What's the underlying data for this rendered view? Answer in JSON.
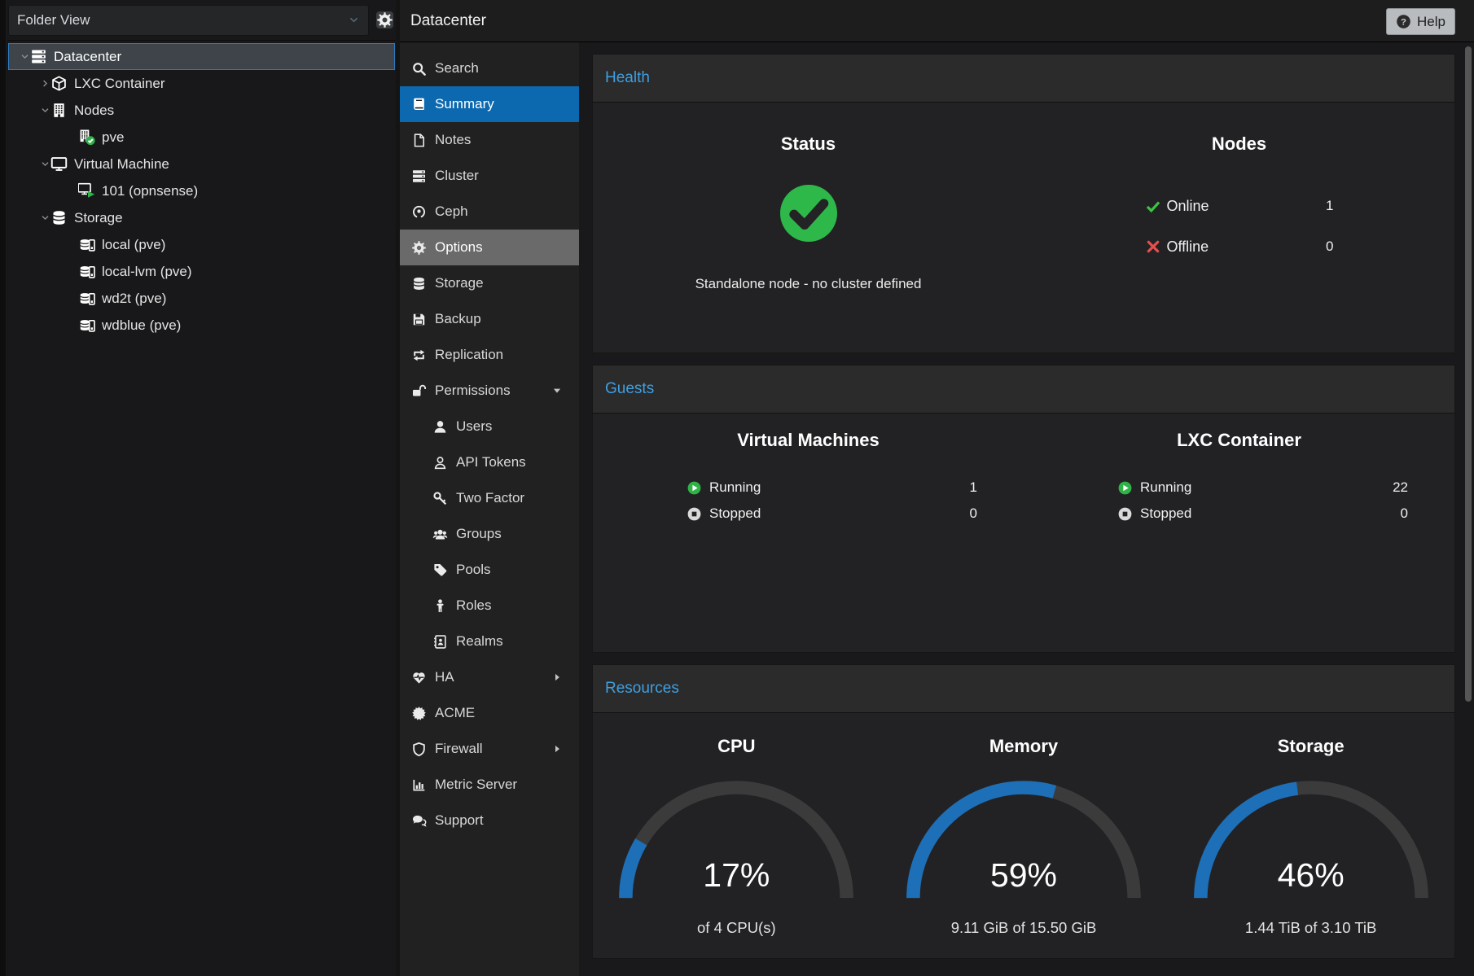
{
  "sidebar": {
    "view_selector": {
      "label": "Folder View"
    },
    "tree": [
      {
        "label": "Datacenter",
        "icon": "server-stack",
        "depth": 0,
        "expander": "expanded",
        "selected": true
      },
      {
        "label": "LXC Container",
        "icon": "cube",
        "depth": 1,
        "expander": "collapsed"
      },
      {
        "label": "Nodes",
        "icon": "building",
        "depth": 1,
        "expander": "expanded"
      },
      {
        "label": "pve",
        "icon": "building-check",
        "depth": 2,
        "expander": "none"
      },
      {
        "label": "Virtual Machine",
        "icon": "monitor",
        "depth": 1,
        "expander": "expanded"
      },
      {
        "label": "101 (opnsense)",
        "icon": "monitor-play",
        "depth": 2,
        "expander": "none"
      },
      {
        "label": "Storage",
        "icon": "database",
        "depth": 1,
        "expander": "expanded"
      },
      {
        "label": "local (pve)",
        "icon": "database-drive",
        "depth": 2,
        "expander": "none"
      },
      {
        "label": "local-lvm (pve)",
        "icon": "database-drive",
        "depth": 2,
        "expander": "none"
      },
      {
        "label": "wd2t (pve)",
        "icon": "database-drive",
        "depth": 2,
        "expander": "none"
      },
      {
        "label": "wdblue (pve)",
        "icon": "database-drive",
        "depth": 2,
        "expander": "none"
      }
    ]
  },
  "header": {
    "title": "Datacenter",
    "help_label": "Help"
  },
  "nav": {
    "items": [
      {
        "label": "Search",
        "icon": "search"
      },
      {
        "label": "Summary",
        "icon": "book",
        "selected": true
      },
      {
        "label": "Notes",
        "icon": "note"
      },
      {
        "label": "Cluster",
        "icon": "server-stack"
      },
      {
        "label": "Ceph",
        "icon": "ceph"
      },
      {
        "label": "Options",
        "icon": "gear",
        "hover": true
      },
      {
        "label": "Storage",
        "icon": "database"
      },
      {
        "label": "Backup",
        "icon": "floppy"
      },
      {
        "label": "Replication",
        "icon": "replicate"
      },
      {
        "label": "Permissions",
        "icon": "unlock",
        "caret": "down"
      },
      {
        "label": "Users",
        "icon": "user",
        "indent": true
      },
      {
        "label": "API Tokens",
        "icon": "user-outline",
        "indent": true
      },
      {
        "label": "Two Factor",
        "icon": "key",
        "indent": true
      },
      {
        "label": "Groups",
        "icon": "users",
        "indent": true
      },
      {
        "label": "Pools",
        "icon": "tag",
        "indent": true
      },
      {
        "label": "Roles",
        "icon": "person",
        "indent": true
      },
      {
        "label": "Realms",
        "icon": "address-book",
        "indent": true
      },
      {
        "label": "HA",
        "icon": "heartbeat",
        "caret": "right"
      },
      {
        "label": "ACME",
        "icon": "burst"
      },
      {
        "label": "Firewall",
        "icon": "shield",
        "caret": "right"
      },
      {
        "label": "Metric Server",
        "icon": "chart"
      },
      {
        "label": "Support",
        "icon": "comments"
      }
    ]
  },
  "panels": {
    "health": {
      "title": "Health",
      "status": {
        "heading": "Status",
        "message": "Standalone node - no cluster defined"
      },
      "nodes": {
        "heading": "Nodes",
        "rows": [
          {
            "label": "Online",
            "icon": "check",
            "value": "1"
          },
          {
            "label": "Offline",
            "icon": "cross",
            "value": "0"
          }
        ]
      }
    },
    "guests": {
      "title": "Guests",
      "columns": [
        {
          "heading": "Virtual Machines",
          "rows": [
            {
              "label": "Running",
              "icon": "play-circle",
              "value": "1"
            },
            {
              "label": "Stopped",
              "icon": "stop-circle",
              "value": "0"
            }
          ]
        },
        {
          "heading": "LXC Container",
          "rows": [
            {
              "label": "Running",
              "icon": "play-circle",
              "value": "22"
            },
            {
              "label": "Stopped",
              "icon": "stop-circle",
              "value": "0"
            }
          ]
        }
      ]
    },
    "resources": {
      "title": "Resources",
      "chart_data": {
        "type": "gauge",
        "gauges": [
          {
            "heading": "CPU",
            "percent": 17,
            "percent_label": "17%",
            "sub": "of 4 CPU(s)"
          },
          {
            "heading": "Memory",
            "percent": 59,
            "percent_label": "59%",
            "sub": "9.11 GiB of 15.50 GiB"
          },
          {
            "heading": "Storage",
            "percent": 46,
            "percent_label": "46%",
            "sub": "1.44 TiB of 3.10 TiB"
          }
        ]
      }
    }
  },
  "colors": {
    "accent_blue": "#0c69b0",
    "title_blue": "#3f9fe0",
    "gauge_blue": "#1d6fb8",
    "gauge_track": "#3b3b3b",
    "green": "#2fb347",
    "red": "#e4504e"
  }
}
